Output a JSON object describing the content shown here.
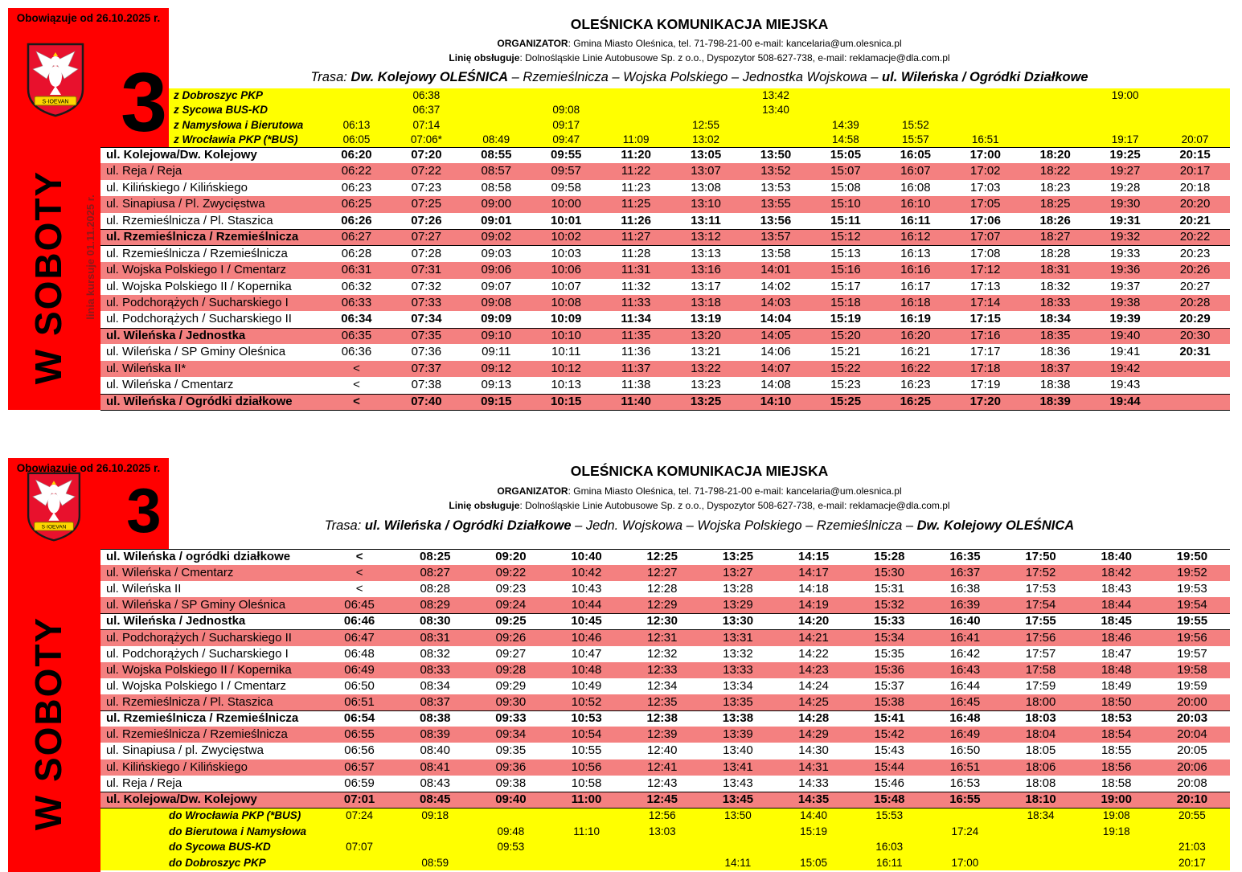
{
  "colors": {
    "red": "#FF0000",
    "yellow": "#FFFF00",
    "pink": "#F48080",
    "row_white": "#FFFFFF",
    "side_note_color": "#8B1A1A",
    "crest_red": "#E8112D",
    "crest_gold": "#FFD700"
  },
  "tables": [
    {
      "valid_from": "Obowiązuje od 26.10.2025 r.",
      "line_number": "3",
      "side_label": "W SOBOTY",
      "side_note": "linia kursuje 01.11.2025 r.",
      "logo_banner_text": "S·IOEVAN",
      "title": "OLEŚNICKA KOMUNIKACJA MIEJSKA",
      "organizer_label": "ORGANIZATOR",
      "organizer_text": ": Gmina Miasto Oleśnica, tel. 71-798-21-00 e-mail: kancelaria@um.olesnica.pl",
      "operator_label": "Linię obsługuje",
      "operator_text": ": Dolnośląskie Linie Autobusowe Sp. z o.o., Dyspozytor 508-627-738, e-mail: reklamacje@dla.com.pl",
      "route_label": "Trasa:",
      "route_parts": [
        {
          "text": "Dw. Kolejowy OLEŚNICA",
          "bold": true
        },
        {
          "text": " – Rzemieślnicza – Wojska Polskiego – Jednostka Wojskowa – ",
          "bold": false
        },
        {
          "text": "ul. Wileńska / Ogródki Działkowe",
          "bold": true
        }
      ],
      "num_cols": 13,
      "connections_position": "top",
      "connections": [
        {
          "label": "z Dobroszyc PKP",
          "times": [
            "",
            "06:38",
            "",
            "",
            "",
            "",
            "13:42",
            "",
            "",
            "",
            "",
            "19:00",
            ""
          ]
        },
        {
          "label": "z Sycowa BUS-KD",
          "times": [
            "",
            "06:37",
            "",
            "09:08",
            "",
            "",
            "13:40",
            "",
            "",
            "",
            "",
            "",
            ""
          ]
        },
        {
          "label": "z Namysłowa i Bierutowa",
          "times": [
            "06:13",
            "07:14",
            "",
            "09:17",
            "",
            "12:55",
            "",
            "14:39",
            "15:52",
            "",
            "",
            "",
            ""
          ]
        },
        {
          "label": "z Wrocławia PKP (*BUS)",
          "times": [
            "06:05",
            "07:06*",
            "08:49",
            "09:47",
            "11:09",
            "13:02",
            "",
            "14:58",
            "15:57",
            "16:51",
            "",
            "19:17",
            "20:07"
          ]
        }
      ],
      "stops": [
        {
          "name": "ul. Kolejowa/Dw. Kolejowy",
          "bold_name": true,
          "bold_times": true,
          "bordered": true,
          "times": [
            "06:20",
            "07:20",
            "08:55",
            "09:55",
            "11:20",
            "13:05",
            "13:50",
            "15:05",
            "16:05",
            "17:00",
            "18:20",
            "19:25",
            "20:15"
          ]
        },
        {
          "name": "ul. Reja / Reja",
          "times": [
            "06:22",
            "07:22",
            "08:57",
            "09:57",
            "11:22",
            "13:07",
            "13:52",
            "15:07",
            "16:07",
            "17:02",
            "18:22",
            "19:27",
            "20:17"
          ]
        },
        {
          "name": "ul. Kilińskiego / Kilińskiego",
          "times": [
            "06:23",
            "07:23",
            "08:58",
            "09:58",
            "11:23",
            "13:08",
            "13:53",
            "15:08",
            "16:08",
            "17:03",
            "18:23",
            "19:28",
            "20:18"
          ]
        },
        {
          "name": "ul. Sinapiusa / Pl. Zwycięstwa",
          "times": [
            "06:25",
            "07:25",
            "09:00",
            "10:00",
            "11:25",
            "13:10",
            "13:55",
            "15:10",
            "16:10",
            "17:05",
            "18:25",
            "19:30",
            "20:20"
          ]
        },
        {
          "name": "ul. Rzemieślnicza / Pl. Staszica",
          "bold_times": true,
          "times": [
            "06:26",
            "07:26",
            "09:01",
            "10:01",
            "11:26",
            "13:11",
            "13:56",
            "15:11",
            "16:11",
            "17:06",
            "18:26",
            "19:31",
            "20:21"
          ]
        },
        {
          "name": "ul. Rzemieślnicza / Rzemieślnicza",
          "bold_name": true,
          "bordered": true,
          "times": [
            "06:27",
            "07:27",
            "09:02",
            "10:02",
            "11:27",
            "13:12",
            "13:57",
            "15:12",
            "16:12",
            "17:07",
            "18:27",
            "19:32",
            "20:22"
          ]
        },
        {
          "name": "ul. Rzemieślnicza / Rzemieślnicza",
          "times": [
            "06:28",
            "07:28",
            "09:03",
            "10:03",
            "11:28",
            "13:13",
            "13:58",
            "15:13",
            "16:13",
            "17:08",
            "18:28",
            "19:33",
            "20:23"
          ]
        },
        {
          "name": "ul. Wojska Polskiego I / Cmentarz",
          "times": [
            "06:31",
            "07:31",
            "09:06",
            "10:06",
            "11:31",
            "13:16",
            "14:01",
            "15:16",
            "16:16",
            "17:12",
            "18:31",
            "19:36",
            "20:26"
          ]
        },
        {
          "name": "ul. Wojska Polskiego II / Kopernika",
          "times": [
            "06:32",
            "07:32",
            "09:07",
            "10:07",
            "11:32",
            "13:17",
            "14:02",
            "15:17",
            "16:17",
            "17:13",
            "18:32",
            "19:37",
            "20:27"
          ]
        },
        {
          "name": "ul. Podchorążych / Sucharskiego I",
          "times": [
            "06:33",
            "07:33",
            "09:08",
            "10:08",
            "11:33",
            "13:18",
            "14:03",
            "15:18",
            "16:18",
            "17:14",
            "18:33",
            "19:38",
            "20:28"
          ]
        },
        {
          "name": "ul. Podchorążych / Sucharskiego II",
          "bold_times": true,
          "times": [
            "06:34",
            "07:34",
            "09:09",
            "10:09",
            "11:34",
            "13:19",
            "14:04",
            "15:19",
            "16:19",
            "17:15",
            "18:34",
            "19:39",
            "20:29"
          ]
        },
        {
          "name": "ul. Wileńska / Jednostka",
          "bold_name": true,
          "bordered": true,
          "times": [
            "06:35",
            "07:35",
            "09:10",
            "10:10",
            "11:35",
            "13:20",
            "14:05",
            "15:20",
            "16:20",
            "17:16",
            "18:35",
            "19:40",
            "20:30"
          ]
        },
        {
          "name": "ul. Wileńska / SP Gminy Oleśnica",
          "bold_cols": [
            12
          ],
          "times": [
            "06:36",
            "07:36",
            "09:11",
            "10:11",
            "11:36",
            "13:21",
            "14:06",
            "15:21",
            "16:21",
            "17:17",
            "18:36",
            "19:41",
            "20:31"
          ]
        },
        {
          "name": "ul. Wileńska II*",
          "times": [
            "<",
            "07:37",
            "09:12",
            "10:12",
            "11:37",
            "13:22",
            "14:07",
            "15:22",
            "16:22",
            "17:18",
            "18:37",
            "19:42",
            ""
          ]
        },
        {
          "name": "ul. Wileńska / Cmentarz",
          "times": [
            "<",
            "07:38",
            "09:13",
            "10:13",
            "11:38",
            "13:23",
            "14:08",
            "15:23",
            "16:23",
            "17:19",
            "18:38",
            "19:43",
            ""
          ]
        },
        {
          "name": "ul. Wileńska / Ogródki działkowe",
          "bold_name": true,
          "bold_times": true,
          "bordered": true,
          "times": [
            "<",
            "07:40",
            "09:15",
            "10:15",
            "11:40",
            "13:25",
            "14:10",
            "15:25",
            "16:25",
            "17:20",
            "18:39",
            "19:44",
            ""
          ]
        }
      ]
    },
    {
      "valid_from": "Obowiązuje od 26.10.2025 r.",
      "line_number": "3",
      "side_label": "W SOBOTY",
      "side_note": "",
      "logo_banner_text": "S·IOEVAN",
      "title": "OLEŚNICKA KOMUNIKACJA MIEJSKA",
      "organizer_label": "ORGANIZATOR",
      "organizer_text": ": Gmina Miasto Oleśnica, tel. 71-798-21-00 e-mail: kancelaria@um.olesnica.pl",
      "operator_label": "Linię obsługuje",
      "operator_text": ": Dolnośląskie Linie Autobusowe Sp. z o.o., Dyspozytor 508-627-738, e-mail: reklamacje@dla.com.pl",
      "route_label": "Trasa:",
      "route_parts": [
        {
          "text": "ul. Wileńska / Ogródki Działkowe",
          "bold": true
        },
        {
          "text": " – Jedn. Wojskowa – Wojska Polskiego – Rzemieślnicza – ",
          "bold": false
        },
        {
          "text": "Dw. Kolejowy OLEŚNICA",
          "bold": true
        }
      ],
      "num_cols": 12,
      "connections_position": "bottom",
      "connections": [
        {
          "label": "do Wrocławia PKP (*BUS)",
          "times": [
            "07:24",
            "09:18",
            "",
            "",
            "12:56",
            "13:50",
            "14:40",
            "15:53",
            "",
            "18:34",
            "19:08",
            "20:55"
          ]
        },
        {
          "label": "do Bierutowa i Namysłowa",
          "times": [
            "",
            "",
            "09:48",
            "11:10",
            "13:03",
            "",
            "15:19",
            "",
            "17:24",
            "",
            "19:18",
            ""
          ]
        },
        {
          "label": "do Sycowa BUS-KD",
          "times": [
            "07:07",
            "",
            "09:53",
            "",
            "",
            "",
            "",
            "16:03",
            "",
            "",
            "",
            "21:03"
          ]
        },
        {
          "label": "do Dobroszyc PKP",
          "times": [
            "",
            "08:59",
            "",
            "",
            "",
            "14:11",
            "15:05",
            "16:11",
            "17:00",
            "",
            "",
            "20:17"
          ]
        }
      ],
      "stops": [
        {
          "name": "ul. Wileńska / ogródki działkowe",
          "bold_name": true,
          "bold_times": true,
          "bordered": true,
          "times": [
            "<",
            "08:25",
            "09:20",
            "10:40",
            "12:25",
            "13:25",
            "14:15",
            "15:28",
            "16:35",
            "17:50",
            "18:40",
            "19:50"
          ]
        },
        {
          "name": "ul. Wileńska / Cmentarz",
          "times": [
            "<",
            "08:27",
            "09:22",
            "10:42",
            "12:27",
            "13:27",
            "14:17",
            "15:30",
            "16:37",
            "17:52",
            "18:42",
            "19:52"
          ]
        },
        {
          "name": "ul. Wileńska II",
          "times": [
            "<",
            "08:28",
            "09:23",
            "10:43",
            "12:28",
            "13:28",
            "14:18",
            "15:31",
            "16:38",
            "17:53",
            "18:43",
            "19:53"
          ]
        },
        {
          "name": "ul. Wileńska / SP Gminy Oleśnica",
          "times": [
            "06:45",
            "08:29",
            "09:24",
            "10:44",
            "12:29",
            "13:29",
            "14:19",
            "15:32",
            "16:39",
            "17:54",
            "18:44",
            "19:54"
          ]
        },
        {
          "name": "ul. Wileńska / Jednostka",
          "bold_name": true,
          "bold_times": true,
          "bordered": true,
          "times": [
            "06:46",
            "08:30",
            "09:25",
            "10:45",
            "12:30",
            "13:30",
            "14:20",
            "15:33",
            "16:40",
            "17:55",
            "18:45",
            "19:55"
          ]
        },
        {
          "name": "ul. Podchorążych / Sucharskiego II",
          "times": [
            "06:47",
            "08:31",
            "09:26",
            "10:46",
            "12:31",
            "13:31",
            "14:21",
            "15:34",
            "16:41",
            "17:56",
            "18:46",
            "19:56"
          ]
        },
        {
          "name": "ul. Podchorążych / Sucharskiego I",
          "times": [
            "06:48",
            "08:32",
            "09:27",
            "10:47",
            "12:32",
            "13:32",
            "14:22",
            "15:35",
            "16:42",
            "17:57",
            "18:47",
            "19:57"
          ]
        },
        {
          "name": "ul. Wojska Polskiego II / Kopernika",
          "times": [
            "06:49",
            "08:33",
            "09:28",
            "10:48",
            "12:33",
            "13:33",
            "14:23",
            "15:36",
            "16:43",
            "17:58",
            "18:48",
            "19:58"
          ]
        },
        {
          "name": "ul. Wojska Polskiego I / Cmentarz",
          "times": [
            "06:50",
            "08:34",
            "09:29",
            "10:49",
            "12:34",
            "13:34",
            "14:24",
            "15:37",
            "16:44",
            "17:59",
            "18:49",
            "19:59"
          ]
        },
        {
          "name": "ul. Rzemieślnicza / Pl. Staszica",
          "times": [
            "06:51",
            "08:37",
            "09:30",
            "10:52",
            "12:35",
            "13:35",
            "14:25",
            "15:38",
            "16:45",
            "18:00",
            "18:50",
            "20:00"
          ]
        },
        {
          "name": "ul. Rzemieślnicza / Rzemieślnicza",
          "bold_name": true,
          "bold_times": true,
          "bordered": true,
          "times": [
            "06:54",
            "08:38",
            "09:33",
            "10:53",
            "12:38",
            "13:38",
            "14:28",
            "15:41",
            "16:48",
            "18:03",
            "18:53",
            "20:03"
          ]
        },
        {
          "name": "ul. Rzemieślnicza / Rzemieślnicza",
          "times": [
            "06:55",
            "08:39",
            "09:34",
            "10:54",
            "12:39",
            "13:39",
            "14:29",
            "15:42",
            "16:49",
            "18:04",
            "18:54",
            "20:04"
          ]
        },
        {
          "name": "ul. Sinapiusa / pl. Zwycięstwa",
          "times": [
            "06:56",
            "08:40",
            "09:35",
            "10:55",
            "12:40",
            "13:40",
            "14:30",
            "15:43",
            "16:50",
            "18:05",
            "18:55",
            "20:05"
          ]
        },
        {
          "name": "ul. Kilińskiego / Kilińskiego",
          "times": [
            "06:57",
            "08:41",
            "09:36",
            "10:56",
            "12:41",
            "13:41",
            "14:31",
            "15:44",
            "16:51",
            "18:06",
            "18:56",
            "20:06"
          ]
        },
        {
          "name": "ul. Reja / Reja",
          "times": [
            "06:59",
            "08:43",
            "09:38",
            "10:58",
            "12:43",
            "13:43",
            "14:33",
            "15:46",
            "16:53",
            "18:08",
            "18:58",
            "20:08"
          ]
        },
        {
          "name": "ul. Kolejowa/Dw. Kolejowy",
          "bold_name": true,
          "bold_times": true,
          "bordered": true,
          "times": [
            "07:01",
            "08:45",
            "09:40",
            "11:00",
            "12:45",
            "13:45",
            "14:35",
            "15:48",
            "16:55",
            "18:10",
            "19:00",
            "20:10"
          ]
        }
      ]
    }
  ]
}
